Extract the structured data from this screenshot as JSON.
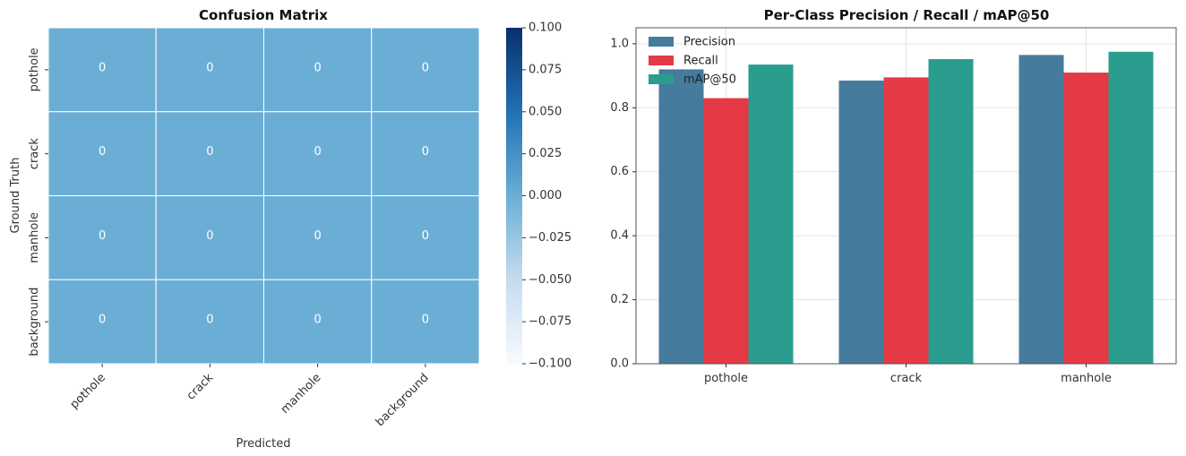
{
  "chart_data": [
    {
      "type": "heatmap",
      "title": "Confusion Matrix",
      "xlabel": "Predicted",
      "ylabel": "Ground Truth",
      "x_categories": [
        "pothole",
        "crack",
        "manhole",
        "background"
      ],
      "y_categories": [
        "pothole",
        "crack",
        "manhole",
        "background"
      ],
      "values": [
        [
          0,
          0,
          0,
          0
        ],
        [
          0,
          0,
          0,
          0
        ],
        [
          0,
          0,
          0,
          0
        ],
        [
          0,
          0,
          0,
          0
        ]
      ],
      "colorbar": {
        "range": [
          -0.1,
          0.1
        ],
        "ticks": [
          "0.100",
          "0.075",
          "0.050",
          "0.025",
          "0.000",
          "−0.025",
          "−0.050",
          "−0.075",
          "−0.100"
        ],
        "colormap": "Blues"
      },
      "colors": {
        "cell": "#6aaed6",
        "gridline": "#ffffff",
        "cbar_low": "#f7fbff",
        "cbar_high": "#08306b"
      }
    },
    {
      "type": "bar",
      "title": "Per-Class Precision / Recall / mAP@50",
      "categories": [
        "pothole",
        "crack",
        "manhole"
      ],
      "series": [
        {
          "name": "Precision",
          "values": [
            0.92,
            0.885,
            0.965
          ],
          "color": "#457b9d"
        },
        {
          "name": "Recall",
          "values": [
            0.83,
            0.895,
            0.91
          ],
          "color": "#e63946"
        },
        {
          "name": "mAP@50",
          "values": [
            0.935,
            0.952,
            0.975
          ],
          "color": "#2a9d8f"
        }
      ],
      "ylim": [
        0,
        1.05
      ],
      "yticks": [
        "0.0",
        "0.2",
        "0.4",
        "0.6",
        "0.8",
        "1.0"
      ],
      "grid": true,
      "legend": "top-left"
    }
  ]
}
